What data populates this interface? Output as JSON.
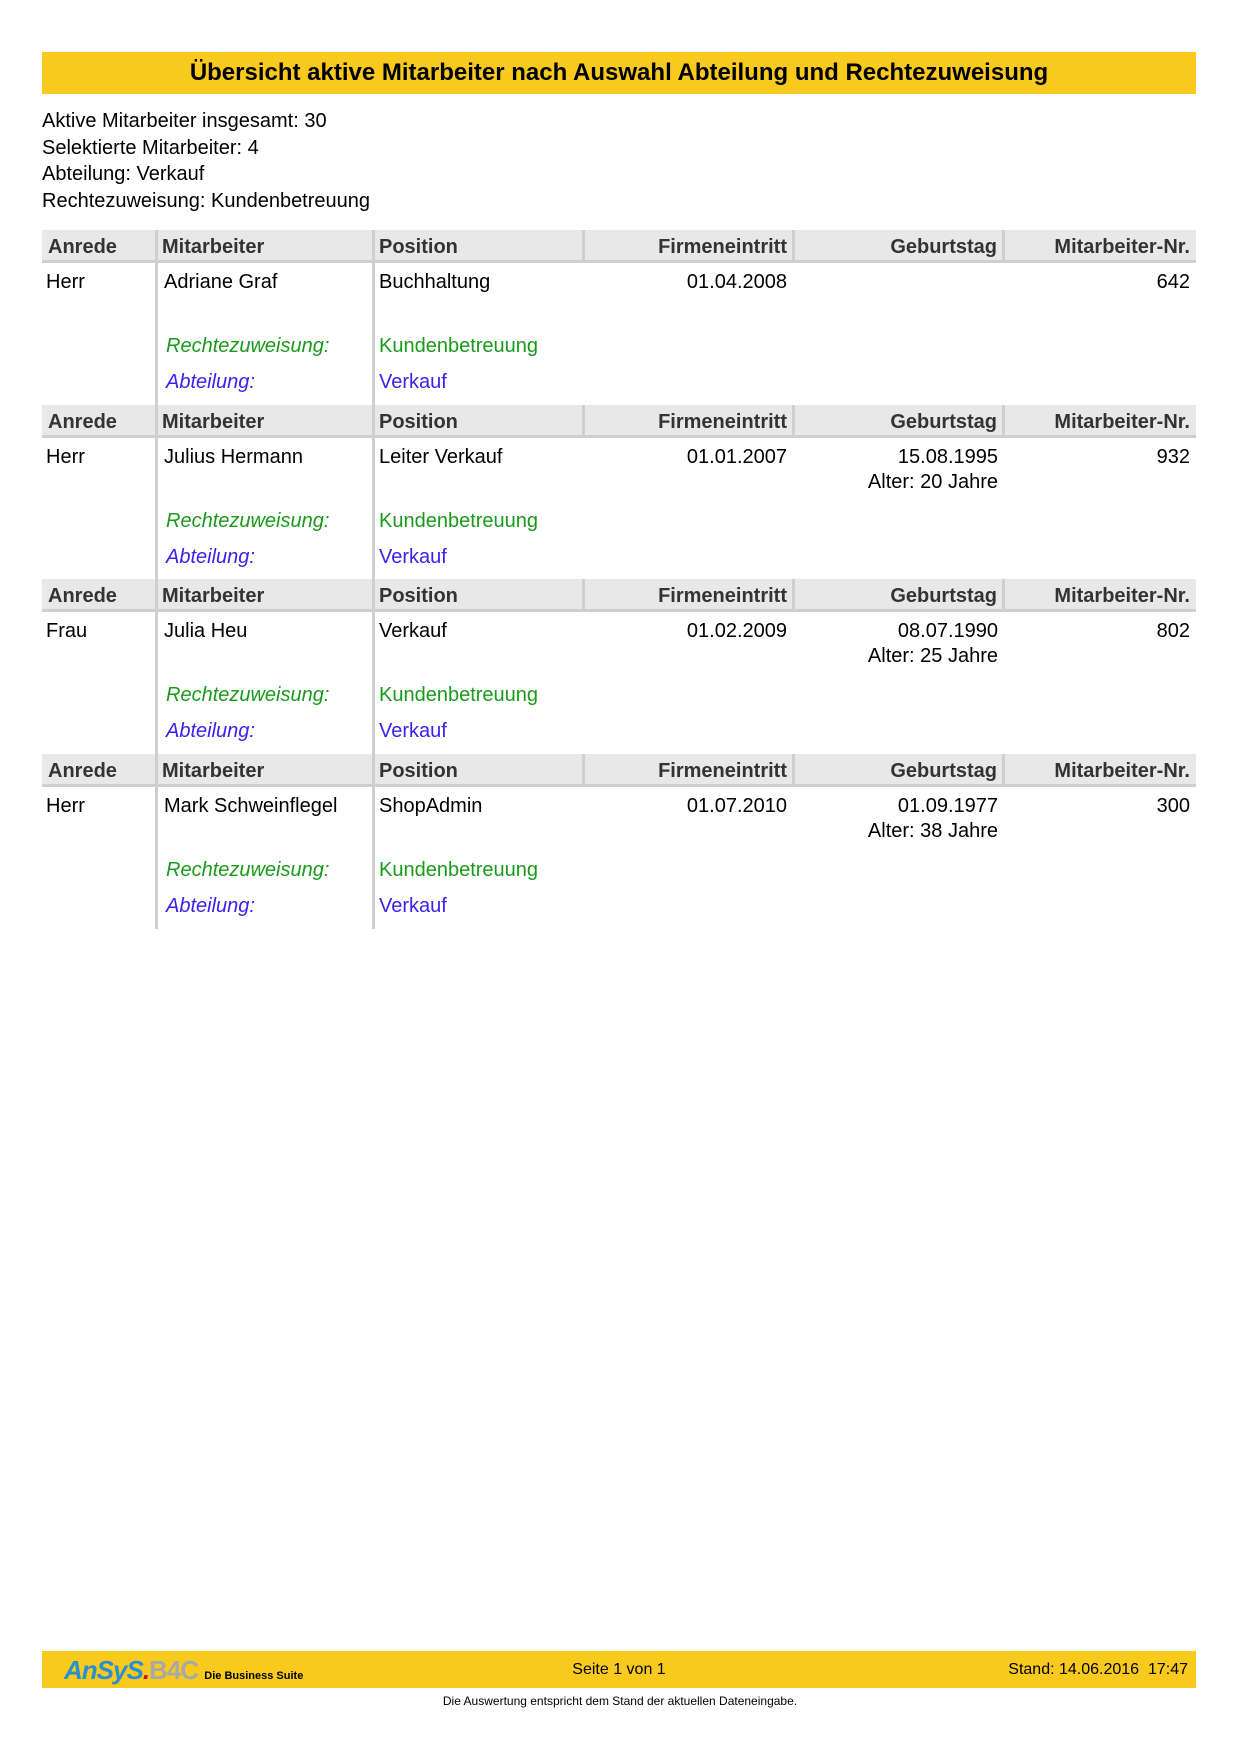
{
  "title": "Übersicht aktive Mitarbeiter nach Auswahl Abteilung und Rechtezuweisung",
  "info": [
    "Aktive Mitarbeiter insgesamt: 30",
    "Selektierte Mitarbeiter: 4",
    "Abteilung: Verkauf",
    "Rechtezuweisung: Kundenbetreuung"
  ],
  "columns": [
    "Anrede",
    "Mitarbeiter",
    "Position",
    "Firmeneintritt",
    "Geburtstag",
    "Mitarbeiter-Nr."
  ],
  "labels": {
    "rechte": "Rechtezuweisung:",
    "abteilung": "Abteilung:"
  },
  "employees": [
    {
      "anrede": "Herr",
      "name": "Adriane Graf",
      "position": "Buchhaltung",
      "eintritt": "01.04.2008",
      "geburtstag": "",
      "alter": "",
      "nr": "642",
      "rechte": "Kundenbetreuung",
      "abteilung": "Verkauf"
    },
    {
      "anrede": "Herr",
      "name": "Julius Hermann",
      "position": "Leiter Verkauf",
      "eintritt": "01.01.2007",
      "geburtstag": "15.08.1995",
      "alter": "Alter: 20 Jahre",
      "nr": "932",
      "rechte": "Kundenbetreuung",
      "abteilung": "Verkauf"
    },
    {
      "anrede": "Frau",
      "name": "Julia Heu",
      "position": "Verkauf",
      "eintritt": "01.02.2009",
      "geburtstag": "08.07.1990",
      "alter": "Alter: 25 Jahre",
      "nr": "802",
      "rechte": "Kundenbetreuung",
      "abteilung": "Verkauf"
    },
    {
      "anrede": "Herr",
      "name": "Mark Schweinflegel",
      "position": "ShopAdmin",
      "eintritt": "01.07.2010",
      "geburtstag": "01.09.1977",
      "alter": "Alter: 38 Jahre",
      "nr": "300",
      "rechte": "Kundenbetreuung",
      "abteilung": "Verkauf"
    }
  ],
  "footer": {
    "logo_text": "AnSyS.B4C",
    "logo_tagline": "Die Business Suite",
    "page": "Seite 1 von 1",
    "stand": "Stand: 14.06.2016  17:47",
    "note": "Die Auswertung entspricht dem Stand der aktuellen Dateneingabe."
  },
  "colors": {
    "accent": "#f9ca1e",
    "rechte": "#1a9a1a",
    "abteilung": "#3a22ee",
    "header_bg": "#e8e8e8"
  }
}
